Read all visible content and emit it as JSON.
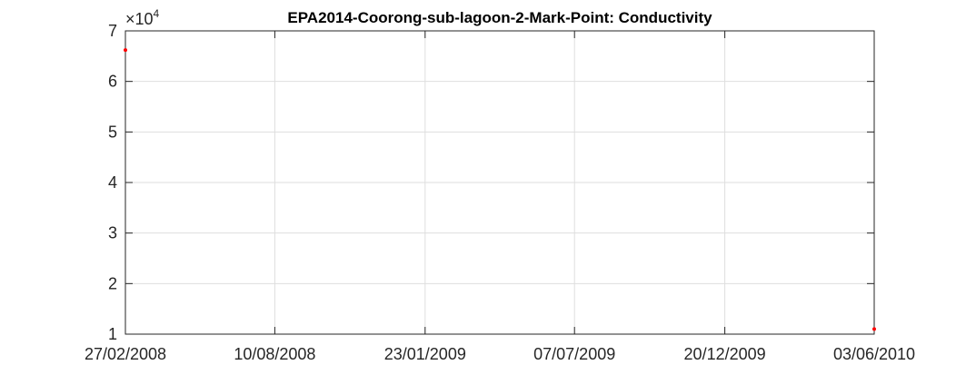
{
  "chart_data": {
    "type": "scatter",
    "title": "EPA2014-Coorong-sub-lagoon-2-Mark-Point: Conductivity",
    "xlabel": "",
    "ylabel": "",
    "y_multiplier": "10",
    "y_multiplier_exponent": "4",
    "y_multiplier_prefix": "×",
    "ylim": [
      1,
      7
    ],
    "y_ticks": [
      "1",
      "2",
      "3",
      "4",
      "5",
      "6",
      "7"
    ],
    "xlim": [
      "27/02/2008",
      "03/06/2010"
    ],
    "x_ticks": [
      "27/02/2008",
      "10/08/2008",
      "23/01/2009",
      "07/07/2009",
      "20/12/2009",
      "03/06/2010"
    ],
    "grid": true,
    "series": [
      {
        "color": "#ff0000",
        "points": [
          {
            "x": "27/02/2008",
            "y": 6.62
          },
          {
            "x": "03/06/2010",
            "y": 1.1
          }
        ]
      }
    ]
  }
}
